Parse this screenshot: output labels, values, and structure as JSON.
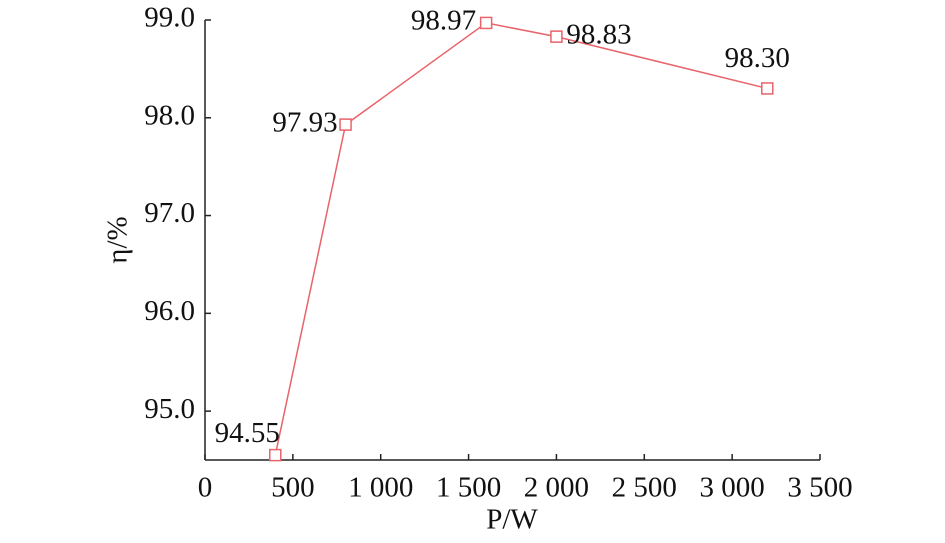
{
  "chart_data": {
    "type": "line",
    "x": [
      400,
      800,
      1600,
      2000,
      3200
    ],
    "series": [
      {
        "color": "#e8636a",
        "values": [
          94.55,
          97.93,
          98.97,
          98.83,
          98.3
        ],
        "value_labels": [
          "94.55",
          "97.93",
          "98.97",
          "98.83",
          "98.30"
        ]
      }
    ],
    "xlabel": "P/W",
    "ylabel": "η/%",
    "xlim": [
      0,
      3500
    ],
    "ylim": [
      94.5,
      99.0
    ],
    "xticks": [
      0,
      500,
      {
        "value": 1000,
        "label": "1 000"
      },
      {
        "value": 1500,
        "label": "1 500"
      },
      {
        "value": 2000,
        "label": "2 000"
      },
      {
        "value": 2500,
        "label": "2 500"
      },
      {
        "value": 3000,
        "label": "3 000"
      },
      {
        "value": 3500,
        "label": "3 500"
      }
    ],
    "yticks": [
      {
        "value": 95,
        "label": "95.0"
      },
      {
        "value": 96,
        "label": "96.0"
      },
      {
        "value": 97,
        "label": "97.0"
      },
      {
        "value": 98,
        "label": "98.0"
      },
      {
        "value": 99,
        "label": "99.0"
      }
    ],
    "grid": false
  }
}
